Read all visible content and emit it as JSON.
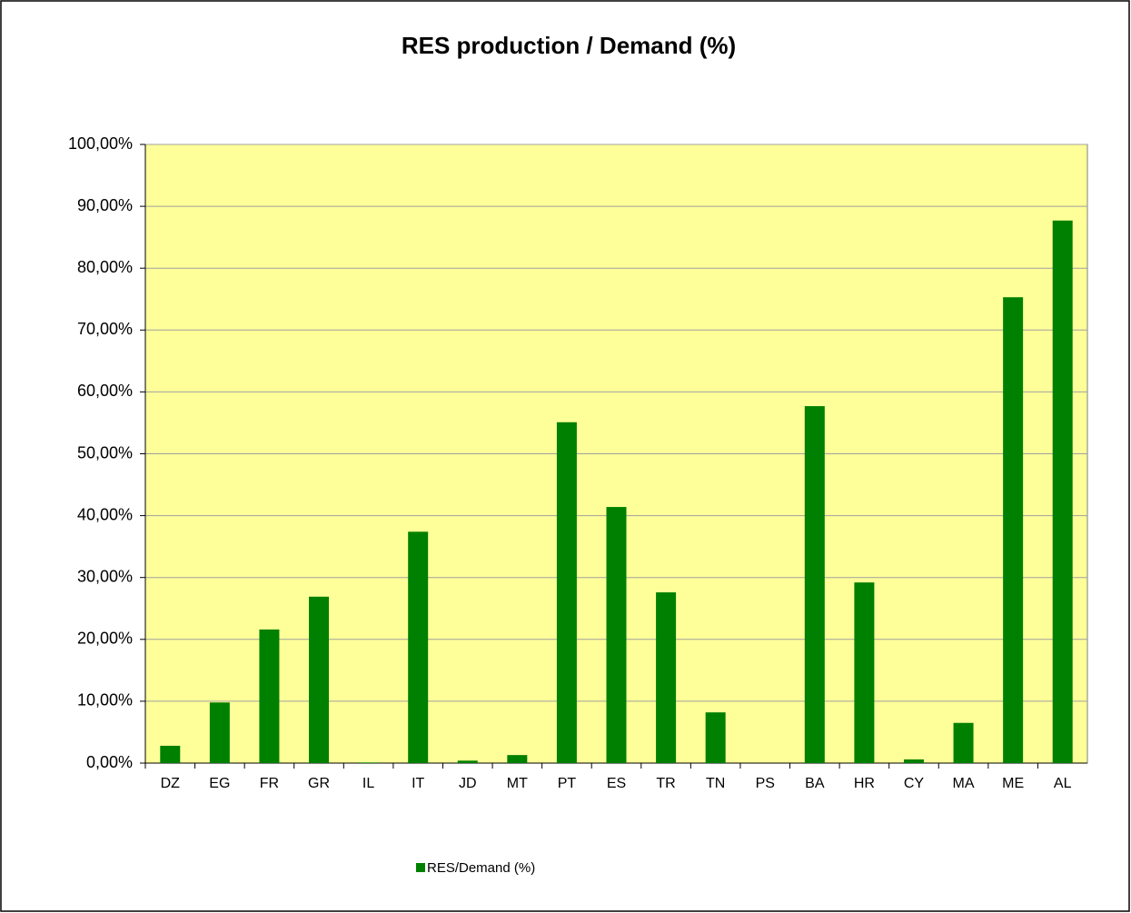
{
  "chart_data": {
    "type": "bar",
    "title": "RES production / Demand (%)",
    "categories": [
      "DZ",
      "EG",
      "FR",
      "GR",
      "IL",
      "IT",
      "JD",
      "MT",
      "PT",
      "ES",
      "TR",
      "TN",
      "PS",
      "BA",
      "HR",
      "CY",
      "MA",
      "ME",
      "AL"
    ],
    "series": [
      {
        "name": "RES/Demand (%)",
        "color": "#008000",
        "values": [
          2.8,
          9.8,
          21.6,
          26.9,
          0.1,
          37.4,
          0.4,
          1.3,
          55.1,
          41.4,
          27.6,
          8.2,
          0,
          57.7,
          29.2,
          0.6,
          6.5,
          75.3,
          87.7
        ]
      }
    ],
    "ylim": [
      0,
      100
    ],
    "yticks": [
      {
        "value": 0,
        "label": "0,00%"
      },
      {
        "value": 10,
        "label": "10,00%"
      },
      {
        "value": 20,
        "label": "20,00%"
      },
      {
        "value": 30,
        "label": "30,00%"
      },
      {
        "value": 40,
        "label": "40,00%"
      },
      {
        "value": 50,
        "label": "50,00%"
      },
      {
        "value": 60,
        "label": "60,00%"
      },
      {
        "value": 70,
        "label": "70,00%"
      },
      {
        "value": 80,
        "label": "80,00%"
      },
      {
        "value": 90,
        "label": "90,00%"
      },
      {
        "value": 100,
        "label": "100,00%"
      }
    ],
    "grid": true,
    "legend": "bottom",
    "plot_background": "#ffff99"
  }
}
